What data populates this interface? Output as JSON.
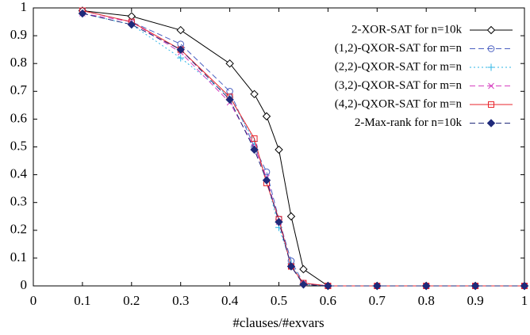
{
  "chart_data": {
    "type": "line",
    "x_label": "#clauses/#exvars",
    "x": [
      0.1,
      0.2,
      0.3,
      0.4,
      0.45,
      0.475,
      0.5,
      0.525,
      0.55,
      0.6,
      0.7,
      0.8,
      0.9,
      1
    ],
    "series": [
      {
        "name": "2-XOR-SAT for n=10k",
        "color": "#000000",
        "dash": "solid",
        "marker": "diamond",
        "values": [
          0.99,
          0.97,
          0.92,
          0.8,
          0.69,
          0.61,
          0.49,
          0.25,
          0.06,
          0,
          0,
          0,
          0,
          0
        ]
      },
      {
        "name": "(1,2)-QXOR-SAT for m=n",
        "color": "#4a5fc1",
        "dash": "dashed",
        "marker": "circle",
        "values": [
          0.99,
          0.95,
          0.87,
          0.7,
          0.5,
          0.41,
          0.24,
          0.09,
          0.01,
          0,
          0,
          0,
          0,
          0
        ]
      },
      {
        "name": "(2,2)-QXOR-SAT for m=n",
        "color": "#2fb5e6",
        "dash": "dotted",
        "marker": "plus",
        "values": [
          0.98,
          0.94,
          0.82,
          0.68,
          0.52,
          0.38,
          0.21,
          0.08,
          0.005,
          0,
          0,
          0,
          0,
          0
        ]
      },
      {
        "name": "(3,2)-QXOR-SAT for m=n",
        "color": "#d63fbf",
        "dash": "dashed",
        "marker": "x",
        "values": [
          0.98,
          0.95,
          0.84,
          0.66,
          0.5,
          0.39,
          0.23,
          0.07,
          0.01,
          0,
          0,
          0,
          0,
          0
        ]
      },
      {
        "name": "(4,2)-QXOR-SAT for m=n",
        "color": "#e8242b",
        "dash": "solid",
        "marker": "square",
        "values": [
          0.99,
          0.95,
          0.85,
          0.68,
          0.53,
          0.37,
          0.24,
          0.07,
          0.01,
          0,
          0,
          0,
          0,
          0
        ]
      },
      {
        "name": "2-Max-rank for n=10k",
        "color": "#1f2a7a",
        "dash": "dashed",
        "marker": "diamond-filled",
        "values": [
          0.98,
          0.94,
          0.85,
          0.67,
          0.49,
          0.38,
          0.23,
          0.07,
          0.005,
          0,
          0,
          0,
          0,
          0
        ]
      }
    ],
    "xlim": [
      0,
      1
    ],
    "xticks": [
      0,
      0.1,
      0.2,
      0.3,
      0.4,
      0.5,
      0.6,
      0.7,
      0.8,
      0.9,
      1
    ],
    "ylim": [
      0,
      1
    ],
    "yticks": [
      0,
      0.1,
      0.2,
      0.3,
      0.4,
      0.5,
      0.6,
      0.7,
      0.8,
      0.9,
      1
    ],
    "legend": "upper right"
  }
}
